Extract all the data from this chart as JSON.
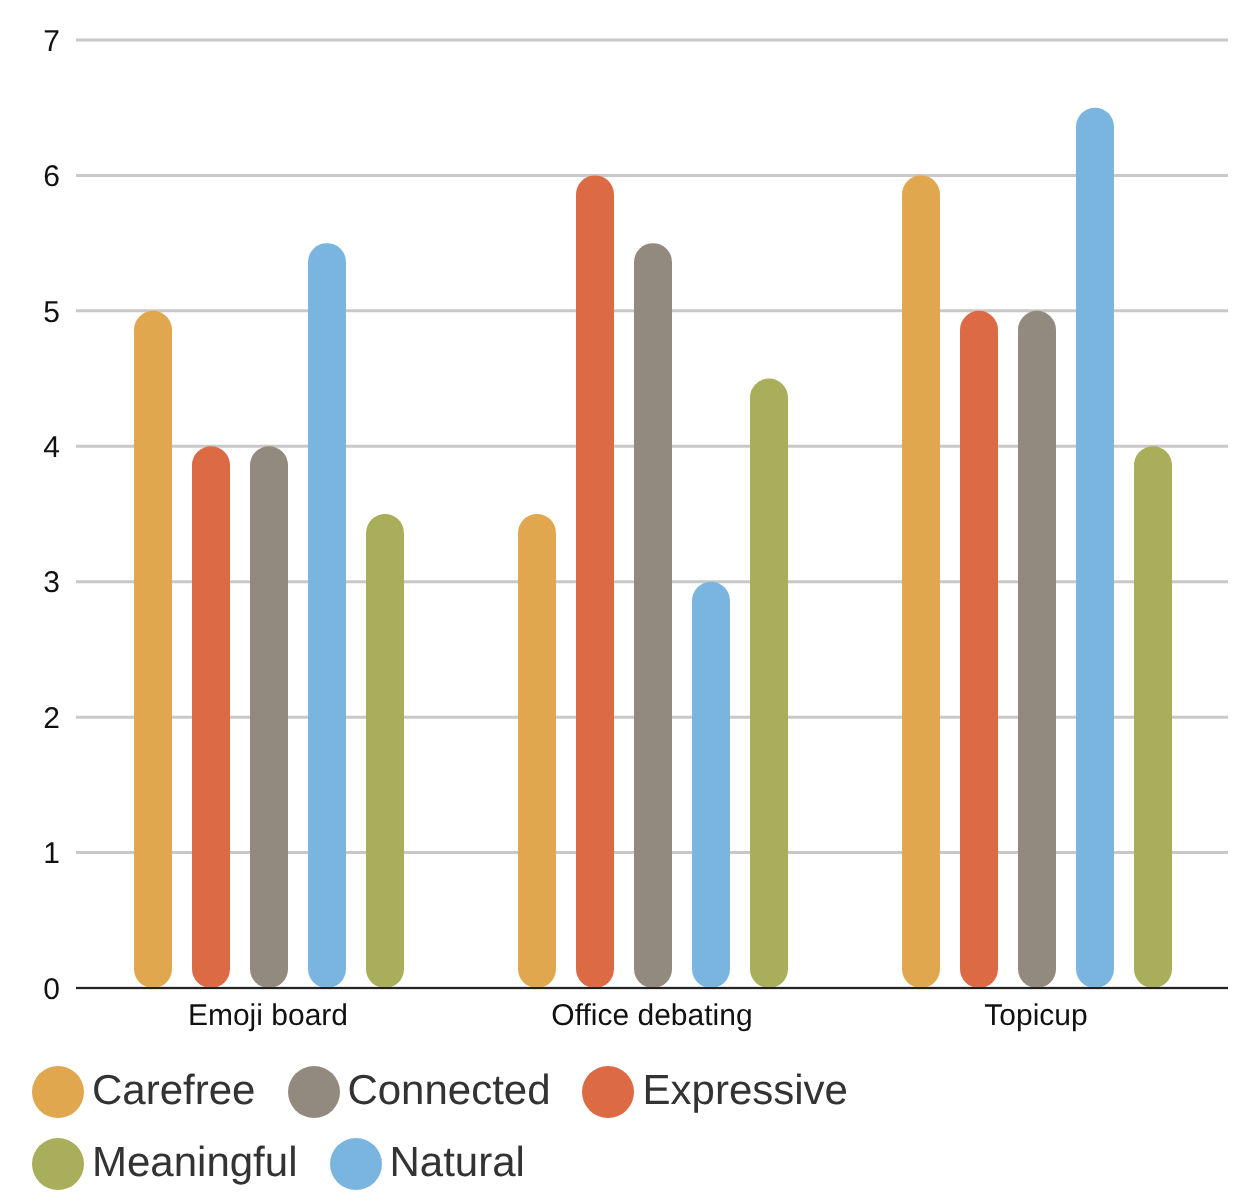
{
  "chart_data": {
    "type": "bar",
    "categories": [
      "Emoji board",
      "Office debating",
      "Topicup"
    ],
    "series": [
      {
        "name": "Carefree",
        "color": "#e0a74e",
        "values": [
          5,
          3.5,
          6
        ]
      },
      {
        "name": "Expressive",
        "color": "#dc6a45",
        "values": [
          4,
          6,
          5
        ]
      },
      {
        "name": "Connected",
        "color": "#938a7f",
        "values": [
          4,
          5.5,
          5
        ]
      },
      {
        "name": "Natural",
        "color": "#7ab5e0",
        "values": [
          5.5,
          3,
          6.5
        ]
      },
      {
        "name": "Meaningful",
        "color": "#a8ae5a",
        "values": [
          3.5,
          4.5,
          4
        ]
      }
    ],
    "ylim": [
      0,
      7
    ],
    "yticks": [
      0,
      1,
      2,
      3,
      4,
      5,
      6,
      7
    ],
    "grid": "y",
    "legend": "bottom"
  }
}
